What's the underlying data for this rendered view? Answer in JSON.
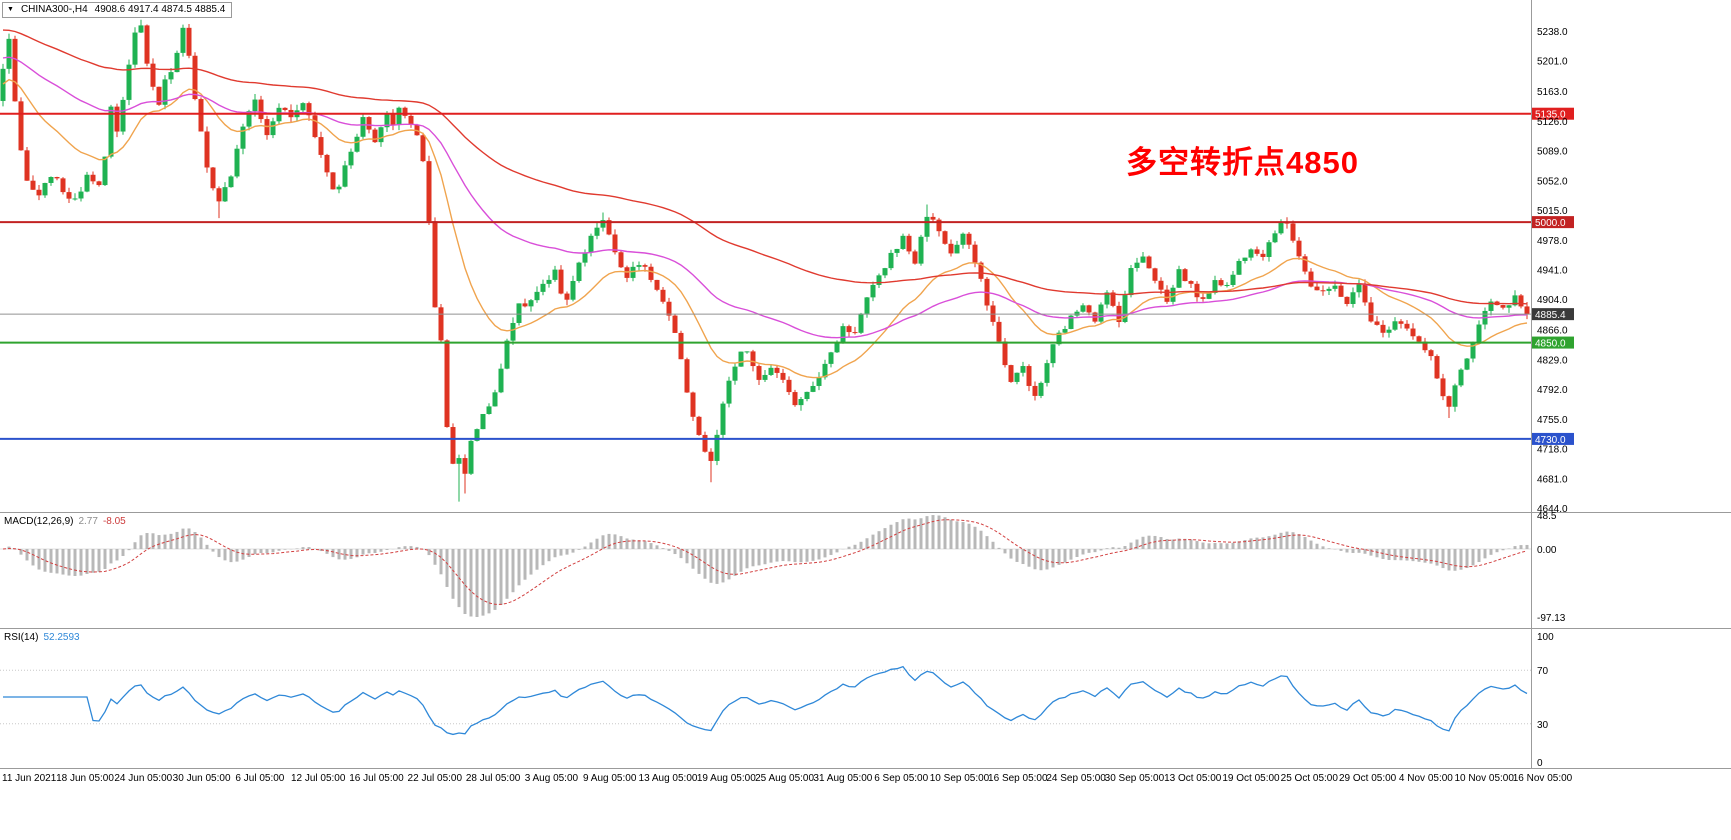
{
  "header": {
    "symbol_period": "CHINA300-,H4",
    "ohlc": "4908.6 4917.4 4874.5 4885.4"
  },
  "annotation": {
    "text": "多空转折点4850",
    "color": "#ff0000"
  },
  "chart_data": {
    "type": "candlestick",
    "symbol": "CHINA300-,H4",
    "timeframe": "H4",
    "title": "",
    "price_range": [
      4644.0,
      5238.0
    ],
    "price_axis": {
      "labels": [
        "5238.0",
        "5201.0",
        "5163.0",
        "5126.0",
        "5089.0",
        "5052.0",
        "5015.0",
        "4978.0",
        "4941.0",
        "4904.0",
        "4866.0",
        "4829.0",
        "4792.0",
        "4755.0",
        "4718.0",
        "4681.0",
        "4644.0"
      ]
    },
    "x_axis": {
      "labels": [
        "11 Jun 2021",
        "18 Jun 05:00",
        "24 Jun 05:00",
        "30 Jun 05:00",
        "6 Jul 05:00",
        "12 Jul 05:00",
        "16 Jul 05:00",
        "22 Jul 05:00",
        "28 Jul 05:00",
        "3 Aug 05:00",
        "9 Aug 05:00",
        "13 Aug 05:00",
        "19 Aug 05:00",
        "25 Aug 05:00",
        "31 Aug 05:00",
        "6 Sep 05:00",
        "10 Sep 05:00",
        "16 Sep 05:00",
        "24 Sep 05:00",
        "30 Sep 05:00",
        "13 Oct 05:00",
        "19 Oct 05:00",
        "25 Oct 05:00",
        "29 Oct 05:00",
        "4 Nov 05:00",
        "10 Nov 05:00",
        "16 Nov 05:00"
      ]
    },
    "closes": [
      5190,
      5230,
      5150,
      5085,
      5050,
      5040,
      5030,
      5045,
      5060,
      5050,
      5040,
      5032,
      5025,
      5042,
      5060,
      5055,
      5050,
      5080,
      5140,
      5110,
      5150,
      5200,
      5235,
      5245,
      5200,
      5165,
      5150,
      5175,
      5190,
      5215,
      5240,
      5205,
      5150,
      5110,
      5065,
      5040,
      5030,
      5045,
      5060,
      5090,
      5120,
      5140,
      5150,
      5130,
      5105,
      5125,
      5145,
      5140,
      5130,
      5140,
      5150,
      5130,
      5105,
      5085,
      5060,
      5040,
      5045,
      5070,
      5090,
      5110,
      5130,
      5115,
      5100,
      5120,
      5135,
      5125,
      5140,
      5135,
      5125,
      5105,
      5075,
      5000,
      4890,
      4855,
      4745,
      4700,
      4705,
      4685,
      4730,
      4745,
      4760,
      4775,
      4790,
      4815,
      4850,
      4875,
      4900,
      4895,
      4905,
      4915,
      4920,
      4930,
      4940,
      4915,
      4900,
      4925,
      4950,
      4965,
      4980,
      4995,
      5005,
      4985,
      4960,
      4945,
      4935,
      4945,
      4950,
      4940,
      4930,
      4915,
      4900,
      4880,
      4860,
      4825,
      4790,
      4760,
      4735,
      4715,
      4700,
      4735,
      4770,
      4800,
      4820,
      4835,
      4840,
      4820,
      4800,
      4810,
      4820,
      4810,
      4800,
      4785,
      4775,
      4782,
      4790,
      4800,
      4810,
      4822,
      4835,
      4852,
      4870,
      4865,
      4865,
      4885,
      4905,
      4918,
      4930,
      4945,
      4960,
      4970,
      4980,
      4965,
      4950,
      4980,
      5010,
      5000,
      4990,
      4975,
      4960,
      4972,
      4985,
      4968,
      4950,
      4925,
      4900,
      4875,
      4850,
      4825,
      4800,
      4810,
      4820,
      4800,
      4780,
      4800,
      4825,
      4845,
      4860,
      4870,
      4880,
      4890,
      4900,
      4890,
      4880,
      4895,
      4910,
      4895,
      4880,
      4910,
      4940,
      4950,
      4960,
      4945,
      4930,
      4915,
      4900,
      4920,
      4940,
      4930,
      4920,
      4910,
      4900,
      4915,
      4930,
      4925,
      4920,
      4935,
      4950,
      4960,
      4970,
      4965,
      4960,
      4975,
      4990,
      4995,
      5000,
      4980,
      4960,
      4940,
      4920,
      4915,
      4910,
      4915,
      4920,
      4910,
      4900,
      4910,
      4920,
      4900,
      4880,
      4870,
      4860,
      4870,
      4880,
      4875,
      4870,
      4860,
      4850,
      4840,
      4830,
      4805,
      4780,
      4770,
      4800,
      4815,
      4830,
      4850,
      4870,
      4885,
      4900,
      4895,
      4890,
      4898,
      4905,
      4895,
      4885.4
    ],
    "last_close": 4885.4,
    "extra_high_wicks": [
      [
        23,
        5252
      ],
      [
        30,
        5246
      ],
      [
        100,
        5012
      ],
      [
        154,
        5022
      ],
      [
        214,
        5006
      ]
    ],
    "extra_low_wicks": [
      [
        36,
        5005
      ],
      [
        76,
        4652
      ],
      [
        77,
        4662
      ],
      [
        118,
        4676
      ],
      [
        241,
        4756
      ]
    ],
    "colors": {
      "up": "#1fb252",
      "down": "#df3322",
      "axis_text": "#000000",
      "divider": "#9b9b9b",
      "background": "#ffffff"
    },
    "moving_averages": [
      {
        "name": "ma-fast",
        "period": 20,
        "color": "#f0a44e",
        "start": 5170
      },
      {
        "name": "ma-mid",
        "period": 55,
        "color": "#d94fd9",
        "start": 5205
      },
      {
        "name": "ma-slow",
        "period": 110,
        "color": "#e03a2f",
        "start": 5240
      }
    ],
    "levels": [
      {
        "value": 5135.0,
        "label": "5135.0",
        "color": "#e01f1f"
      },
      {
        "value": 5000.0,
        "label": "5000.0",
        "color": "#c22222"
      },
      {
        "value": 4850.0,
        "label": "4850.0",
        "color": "#2fa32f"
      },
      {
        "value": 4730.0,
        "label": "4730.0",
        "color": "#2b52cc"
      }
    ],
    "bid": {
      "value": 4885.4,
      "label": "4885.4",
      "line_color": "#909090",
      "tag_bg": "#3a3a3a"
    },
    "indicators": {
      "macd": {
        "name": "MACD(12,26,9)",
        "value_main": "2.77",
        "value_signal": "-8.05",
        "fast": 12,
        "slow": 26,
        "signal": 9,
        "scale_labels": [
          "48.5",
          "0.00",
          "-97.13"
        ],
        "scale_max": 48.5,
        "scale_min": -97.13,
        "histogram_color": "#b8b8b8",
        "signal_color": "#d24040"
      },
      "rsi": {
        "name": "RSI(14)",
        "value": "52.2593",
        "period": 14,
        "scale_labels": [
          "100",
          "70",
          "30",
          "0"
        ],
        "levels": [
          70,
          30
        ],
        "line_color": "#2f88d8",
        "level_color": "#c8c8c8"
      }
    }
  }
}
